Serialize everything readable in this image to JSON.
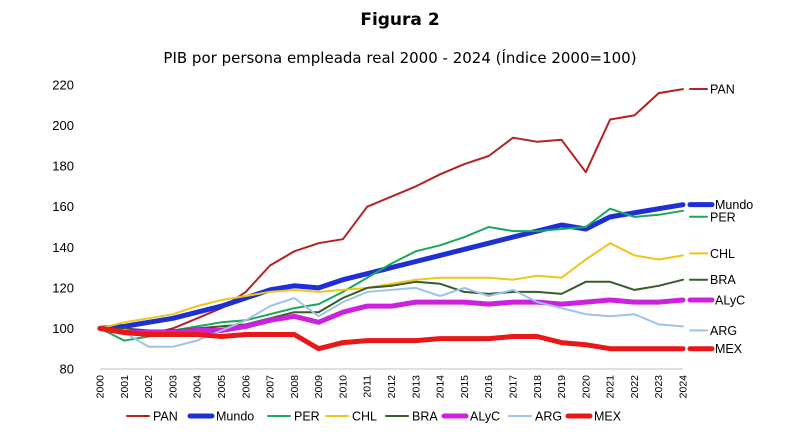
{
  "chart_data": {
    "type": "line",
    "figure_label": "Figura 2",
    "title": "PIB por persona empleada real 2000 - 2024 (Índice 2000=100)",
    "xlabel": "",
    "ylabel": "",
    "ylim": [
      80,
      220
    ],
    "yticks": [
      80,
      100,
      120,
      140,
      160,
      180,
      200,
      220
    ],
    "x": [
      "2000",
      "2001",
      "2002",
      "2003",
      "2004",
      "2005",
      "2006",
      "2007",
      "2008",
      "2009",
      "2010",
      "2011",
      "2012",
      "2013",
      "2014",
      "2015",
      "2016",
      "2017",
      "2018",
      "2019",
      "2020",
      "2021",
      "2022",
      "2023",
      "2024"
    ],
    "grid": false,
    "legend_position": "bottom",
    "series": [
      {
        "name": "PAN",
        "color": "#b22222",
        "width": 2,
        "values": [
          100,
          98,
          97,
          100,
          105,
          110,
          118,
          131,
          138,
          142,
          144,
          160,
          165,
          170,
          176,
          181,
          185,
          194,
          192,
          193,
          177,
          203,
          205,
          216,
          218
        ]
      },
      {
        "name": "Mundo",
        "color": "#1f2fd6",
        "width": 5,
        "values": [
          100,
          101,
          103,
          105,
          108,
          111,
          115,
          119,
          121,
          120,
          124,
          127,
          130,
          133,
          136,
          139,
          142,
          145,
          148,
          151,
          149,
          155,
          157,
          159,
          161
        ]
      },
      {
        "name": "PER",
        "color": "#1aa85a",
        "width": 2,
        "values": [
          100,
          94,
          96,
          99,
          101,
          103,
          104,
          107,
          110,
          112,
          118,
          125,
          132,
          138,
          141,
          145,
          150,
          148,
          148,
          149,
          150,
          159,
          155,
          156,
          158
        ]
      },
      {
        "name": "CHL",
        "color": "#f0c419",
        "width": 2,
        "values": [
          100,
          103,
          105,
          107,
          111,
          114,
          116,
          118,
          119,
          118,
          119,
          120,
          122,
          124,
          125,
          125,
          125,
          124,
          126,
          125,
          134,
          142,
          136,
          134,
          136
        ]
      },
      {
        "name": "BRA",
        "color": "#3a5a2a",
        "width": 2,
        "values": [
          100,
          100,
          99,
          99,
          100,
          101,
          102,
          105,
          108,
          108,
          115,
          120,
          121,
          123,
          122,
          118,
          117,
          118,
          118,
          117,
          123,
          123,
          119,
          121,
          124
        ]
      },
      {
        "name": "ALyC",
        "color": "#cc22dd",
        "width": 5,
        "values": [
          100,
          98,
          98,
          98,
          99,
          99,
          101,
          104,
          106,
          103,
          108,
          111,
          111,
          113,
          113,
          113,
          112,
          113,
          113,
          112,
          113,
          114,
          113,
          113,
          114
        ]
      },
      {
        "name": "ARG",
        "color": "#9dc3e6",
        "width": 2,
        "values": [
          100,
          98,
          91,
          91,
          94,
          99,
          104,
          111,
          115,
          106,
          113,
          118,
          119,
          120,
          116,
          120,
          116,
          119,
          113,
          110,
          107,
          106,
          107,
          102,
          101
        ]
      },
      {
        "name": "MEX",
        "color": "#e81818",
        "width": 5,
        "values": [
          100,
          98,
          97,
          97,
          97,
          96,
          97,
          97,
          97,
          90,
          93,
          94,
          94,
          94,
          95,
          95,
          95,
          96,
          96,
          93,
          92,
          90,
          90,
          90,
          90
        ]
      }
    ]
  }
}
